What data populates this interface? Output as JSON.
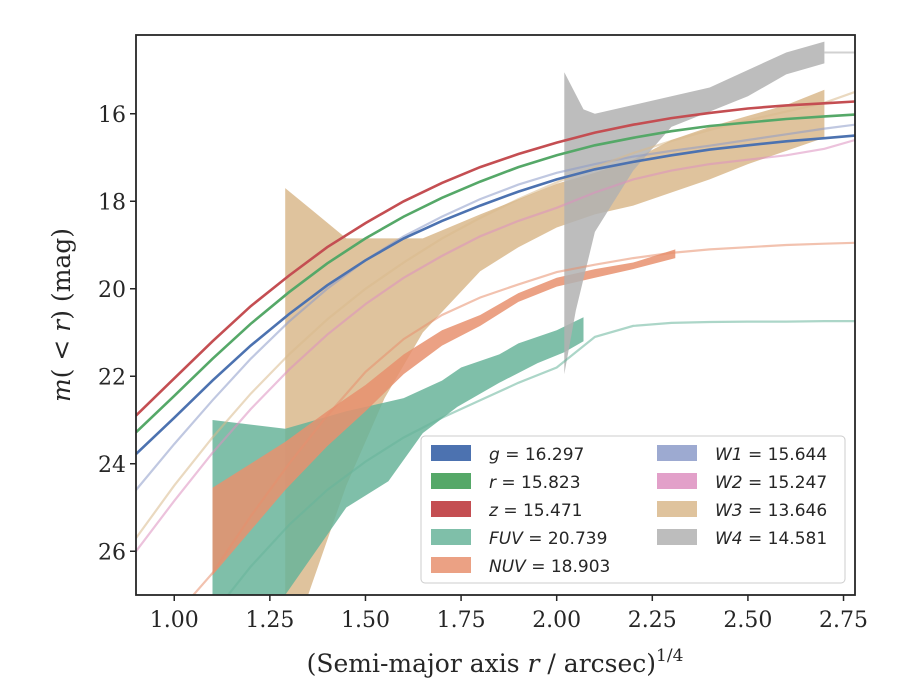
{
  "chart_data": {
    "type": "area",
    "xlabel": "(Semi-major axis r / arcsec)^1/4",
    "xlabel_main": "(Semi-major axis ",
    "xlabel_r": "r",
    "xlabel_unit": " / arcsec)",
    "xlabel_exp": "1/4",
    "ylabel": "m(< r) (mag)",
    "ylabel_prefix": "m",
    "ylabel_paren": "( < ",
    "ylabel_r": "r",
    "ylabel_suffix": ") (mag)",
    "xlim": [
      0.9,
      2.78
    ],
    "ylim": [
      27.0,
      14.2
    ],
    "y_inverted": true,
    "xticks": [
      "1.00",
      "1.25",
      "1.50",
      "1.75",
      "2.00",
      "2.25",
      "2.50",
      "2.75"
    ],
    "xtick_values": [
      1.0,
      1.25,
      1.5,
      1.75,
      2.0,
      2.25,
      2.5,
      2.75
    ],
    "yticks": [
      "16",
      "18",
      "20",
      "22",
      "24",
      "26"
    ],
    "ytick_values": [
      16,
      18,
      20,
      22,
      24,
      26
    ],
    "grid": false,
    "legend_placement": "lower-right",
    "series": [
      {
        "key": "g",
        "band": "g",
        "mag": "16.297",
        "color": "#4c72b0",
        "model": [
          [
            0.9,
            23.78
          ],
          [
            1.0,
            22.95
          ],
          [
            1.1,
            22.1
          ],
          [
            1.2,
            21.3
          ],
          [
            1.3,
            20.58
          ],
          [
            1.4,
            19.92
          ],
          [
            1.5,
            19.35
          ],
          [
            1.6,
            18.85
          ],
          [
            1.7,
            18.45
          ],
          [
            1.8,
            18.1
          ],
          [
            1.9,
            17.78
          ],
          [
            2.0,
            17.5
          ],
          [
            2.1,
            17.27
          ],
          [
            2.2,
            17.1
          ],
          [
            2.3,
            16.95
          ],
          [
            2.4,
            16.82
          ],
          [
            2.5,
            16.72
          ],
          [
            2.6,
            16.63
          ],
          [
            2.7,
            16.56
          ],
          [
            2.78,
            16.5
          ]
        ],
        "band_upper": null,
        "band_lower": null,
        "legend_label": "g = 16.297"
      },
      {
        "key": "r",
        "band": "r",
        "mag": "15.823",
        "color": "#55a868",
        "model": [
          [
            0.9,
            23.28
          ],
          [
            1.0,
            22.45
          ],
          [
            1.1,
            21.6
          ],
          [
            1.2,
            20.8
          ],
          [
            1.3,
            20.08
          ],
          [
            1.4,
            19.42
          ],
          [
            1.5,
            18.85
          ],
          [
            1.6,
            18.35
          ],
          [
            1.7,
            17.92
          ],
          [
            1.8,
            17.55
          ],
          [
            1.9,
            17.22
          ],
          [
            2.0,
            16.95
          ],
          [
            2.1,
            16.72
          ],
          [
            2.2,
            16.55
          ],
          [
            2.3,
            16.4
          ],
          [
            2.4,
            16.28
          ],
          [
            2.5,
            16.2
          ],
          [
            2.6,
            16.12
          ],
          [
            2.7,
            16.06
          ],
          [
            2.78,
            16.02
          ]
        ],
        "band_upper": null,
        "band_lower": null,
        "legend_label": "r = 15.823"
      },
      {
        "key": "z",
        "band": "z",
        "mag": "15.471",
        "color": "#c44e52",
        "model": [
          [
            0.9,
            22.9
          ],
          [
            1.0,
            22.05
          ],
          [
            1.1,
            21.2
          ],
          [
            1.2,
            20.4
          ],
          [
            1.3,
            19.7
          ],
          [
            1.4,
            19.05
          ],
          [
            1.5,
            18.5
          ],
          [
            1.6,
            18.0
          ],
          [
            1.7,
            17.58
          ],
          [
            1.8,
            17.22
          ],
          [
            1.9,
            16.92
          ],
          [
            2.0,
            16.66
          ],
          [
            2.1,
            16.43
          ],
          [
            2.2,
            16.25
          ],
          [
            2.3,
            16.1
          ],
          [
            2.4,
            15.98
          ],
          [
            2.5,
            15.88
          ],
          [
            2.6,
            15.81
          ],
          [
            2.7,
            15.76
          ],
          [
            2.78,
            15.72
          ]
        ],
        "band_upper": null,
        "band_lower": null,
        "legend_label": "z = 15.471"
      },
      {
        "key": "fuv",
        "band": "FUV",
        "mag": "20.739",
        "color": "#68b49a",
        "model": [
          [
            0.9,
            30.0
          ],
          [
            1.0,
            28.7
          ],
          [
            1.1,
            27.45
          ],
          [
            1.2,
            26.35
          ],
          [
            1.3,
            25.4
          ],
          [
            1.4,
            24.6
          ],
          [
            1.5,
            23.95
          ],
          [
            1.6,
            23.4
          ],
          [
            1.7,
            22.95
          ],
          [
            1.8,
            22.55
          ],
          [
            1.9,
            22.15
          ],
          [
            2.0,
            21.8
          ],
          [
            2.1,
            21.1
          ],
          [
            2.2,
            20.85
          ],
          [
            2.3,
            20.78
          ],
          [
            2.4,
            20.76
          ],
          [
            2.5,
            20.75
          ],
          [
            2.6,
            20.75
          ],
          [
            2.7,
            20.74
          ],
          [
            2.78,
            20.74
          ]
        ],
        "band_upper": [
          [
            1.1,
            23.0
          ],
          [
            1.29,
            23.2
          ],
          [
            1.45,
            22.8
          ],
          [
            1.6,
            22.5
          ],
          [
            1.7,
            22.1
          ],
          [
            1.75,
            21.8
          ],
          [
            1.85,
            21.5
          ],
          [
            1.9,
            21.25
          ],
          [
            2.0,
            20.95
          ],
          [
            2.07,
            20.65
          ]
        ],
        "band_lower": [
          [
            1.1,
            27.0
          ],
          [
            1.29,
            27.0
          ],
          [
            1.45,
            25.0
          ],
          [
            1.56,
            24.4
          ],
          [
            1.65,
            23.3
          ],
          [
            1.74,
            22.7
          ],
          [
            1.85,
            22.15
          ],
          [
            1.95,
            21.7
          ],
          [
            2.02,
            21.45
          ],
          [
            2.07,
            21.2
          ]
        ],
        "legend_label": "FUV = 20.739"
      },
      {
        "key": "nuv",
        "band": "NUV",
        "mag": "18.903",
        "color": "#e8906e",
        "model": [
          [
            0.9,
            28.6
          ],
          [
            1.0,
            27.5
          ],
          [
            1.1,
            26.5
          ],
          [
            1.2,
            25.2
          ],
          [
            1.3,
            24.0
          ],
          [
            1.4,
            22.9
          ],
          [
            1.5,
            21.9
          ],
          [
            1.6,
            21.15
          ],
          [
            1.7,
            20.6
          ],
          [
            1.8,
            20.2
          ],
          [
            1.9,
            19.9
          ],
          [
            2.0,
            19.62
          ],
          [
            2.1,
            19.45
          ],
          [
            2.2,
            19.3
          ],
          [
            2.3,
            19.18
          ],
          [
            2.4,
            19.1
          ],
          [
            2.5,
            19.05
          ],
          [
            2.6,
            19.0
          ],
          [
            2.7,
            18.97
          ],
          [
            2.78,
            18.95
          ]
        ],
        "band_upper": [
          [
            1.1,
            24.55
          ],
          [
            1.29,
            23.5
          ],
          [
            1.4,
            22.8
          ],
          [
            1.5,
            22.2
          ],
          [
            1.6,
            21.5
          ],
          [
            1.7,
            20.95
          ],
          [
            1.8,
            20.6
          ],
          [
            1.9,
            20.1
          ],
          [
            2.0,
            19.75
          ],
          [
            2.1,
            19.55
          ],
          [
            2.2,
            19.4
          ],
          [
            2.31,
            19.1
          ]
        ],
        "band_lower": [
          [
            1.1,
            26.55
          ],
          [
            1.29,
            24.6
          ],
          [
            1.4,
            23.6
          ],
          [
            1.5,
            22.8
          ],
          [
            1.6,
            21.95
          ],
          [
            1.7,
            21.3
          ],
          [
            1.8,
            20.85
          ],
          [
            1.9,
            20.3
          ],
          [
            2.0,
            19.95
          ],
          [
            2.1,
            19.75
          ],
          [
            2.2,
            19.55
          ],
          [
            2.31,
            19.3
          ]
        ],
        "legend_label": "NUV = 18.903"
      },
      {
        "key": "w1",
        "band": "W1",
        "mag": "15.644",
        "color": "#8c9bc9",
        "model": [
          [
            0.9,
            24.6
          ],
          [
            1.0,
            23.55
          ],
          [
            1.1,
            22.55
          ],
          [
            1.2,
            21.6
          ],
          [
            1.3,
            20.75
          ],
          [
            1.4,
            20.0
          ],
          [
            1.5,
            19.35
          ],
          [
            1.6,
            18.8
          ],
          [
            1.7,
            18.35
          ],
          [
            1.8,
            17.95
          ],
          [
            1.9,
            17.62
          ],
          [
            2.0,
            17.35
          ],
          [
            2.1,
            17.15
          ],
          [
            2.2,
            16.98
          ],
          [
            2.3,
            16.85
          ],
          [
            2.4,
            16.73
          ],
          [
            2.5,
            16.6
          ],
          [
            2.6,
            16.47
          ],
          [
            2.7,
            16.34
          ],
          [
            2.78,
            16.25
          ]
        ],
        "band_upper": null,
        "band_lower": null,
        "legend_label": "W1 = 15.644"
      },
      {
        "key": "w2",
        "band": "W2",
        "mag": "15.247",
        "color": "#dd8fc0",
        "model": [
          [
            0.9,
            26.0
          ],
          [
            1.0,
            24.85
          ],
          [
            1.1,
            23.75
          ],
          [
            1.2,
            22.75
          ],
          [
            1.3,
            21.85
          ],
          [
            1.4,
            21.05
          ],
          [
            1.5,
            20.35
          ],
          [
            1.6,
            19.75
          ],
          [
            1.7,
            19.25
          ],
          [
            1.8,
            18.8
          ],
          [
            1.9,
            18.45
          ],
          [
            2.0,
            18.15
          ],
          [
            2.1,
            17.8
          ],
          [
            2.2,
            17.5
          ],
          [
            2.3,
            17.3
          ],
          [
            2.4,
            17.15
          ],
          [
            2.5,
            17.05
          ],
          [
            2.6,
            16.95
          ],
          [
            2.7,
            16.8
          ],
          [
            2.78,
            16.6
          ]
        ],
        "band_upper": null,
        "band_lower": null,
        "legend_label": "W2 = 15.247"
      },
      {
        "key": "w3",
        "band": "W3",
        "mag": "13.646",
        "color": "#d9b98c",
        "model": [
          [
            0.9,
            25.7
          ],
          [
            1.0,
            24.5
          ],
          [
            1.1,
            23.4
          ],
          [
            1.2,
            22.4
          ],
          [
            1.3,
            21.5
          ],
          [
            1.4,
            20.7
          ],
          [
            1.5,
            20.0
          ],
          [
            1.6,
            19.4
          ],
          [
            1.7,
            18.85
          ],
          [
            1.8,
            18.38
          ],
          [
            1.9,
            17.95
          ],
          [
            2.0,
            17.57
          ],
          [
            2.1,
            17.22
          ],
          [
            2.2,
            16.9
          ],
          [
            2.3,
            16.62
          ],
          [
            2.4,
            16.37
          ],
          [
            2.5,
            16.15
          ],
          [
            2.6,
            15.95
          ],
          [
            2.7,
            15.75
          ],
          [
            2.78,
            15.5
          ]
        ],
        "band_upper": [
          [
            1.29,
            17.7
          ],
          [
            1.36,
            18.2
          ],
          [
            1.45,
            18.85
          ],
          [
            1.65,
            18.85
          ],
          [
            1.8,
            18.3
          ],
          [
            1.9,
            17.95
          ],
          [
            2.0,
            17.6
          ],
          [
            2.1,
            17.35
          ],
          [
            2.2,
            17.05
          ],
          [
            2.3,
            16.6
          ],
          [
            2.4,
            16.3
          ],
          [
            2.5,
            16.05
          ],
          [
            2.6,
            15.8
          ],
          [
            2.7,
            15.45
          ]
        ],
        "band_lower": [
          [
            1.29,
            27.0
          ],
          [
            1.35,
            27.0
          ],
          [
            1.45,
            24.5
          ],
          [
            1.55,
            22.5
          ],
          [
            1.65,
            21.0
          ],
          [
            1.8,
            19.6
          ],
          [
            1.9,
            19.05
          ],
          [
            2.0,
            18.6
          ],
          [
            2.1,
            18.3
          ],
          [
            2.2,
            18.1
          ],
          [
            2.3,
            17.8
          ],
          [
            2.4,
            17.5
          ],
          [
            2.5,
            17.15
          ],
          [
            2.6,
            16.85
          ],
          [
            2.7,
            16.55
          ]
        ],
        "legend_label": "W3 = 13.646"
      },
      {
        "key": "w4",
        "band": "W4",
        "mag": "14.581",
        "color": "#b2b2b2",
        "model": [
          [
            2.7,
            14.6
          ],
          [
            2.78,
            14.6
          ]
        ],
        "band_upper": [
          [
            2.02,
            15.05
          ],
          [
            2.07,
            15.9
          ],
          [
            2.1,
            16.0
          ],
          [
            2.2,
            15.8
          ],
          [
            2.3,
            15.6
          ],
          [
            2.4,
            15.4
          ],
          [
            2.5,
            15.0
          ],
          [
            2.6,
            14.6
          ],
          [
            2.7,
            14.35
          ]
        ],
        "band_lower": [
          [
            2.02,
            21.95
          ],
          [
            2.05,
            20.5
          ],
          [
            2.1,
            18.7
          ],
          [
            2.2,
            17.3
          ],
          [
            2.3,
            16.3
          ],
          [
            2.4,
            15.95
          ],
          [
            2.5,
            15.6
          ],
          [
            2.6,
            15.1
          ],
          [
            2.7,
            14.85
          ]
        ],
        "legend_label": "W4 = 14.581"
      }
    ],
    "legend_order_col1": [
      "g",
      "r",
      "z",
      "fuv",
      "nuv"
    ],
    "legend_order_col2": [
      "w1",
      "w2",
      "w3",
      "w4"
    ]
  }
}
